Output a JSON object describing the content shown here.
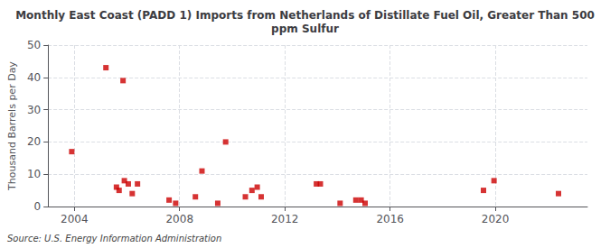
{
  "chart_data": {
    "type": "scatter",
    "title": "Monthly East Coast (PADD 1) Imports from Netherlands of Distillate Fuel Oil, Greater Than 500\nppm Sulfur",
    "ylabel": "Thousand Barrels per Day",
    "annotation": "Source: U.S. Energy Information Administration",
    "color": "#cc0000",
    "marker": "square",
    "grid": true,
    "xlim": [
      2003.0,
      2023.5
    ],
    "ylim": [
      0,
      50
    ],
    "xticks": [
      2004,
      2008,
      2012,
      2016,
      2020
    ],
    "yticks": [
      0,
      10,
      20,
      30,
      40,
      50
    ],
    "x": [
      2003.9,
      2005.2,
      2005.85,
      2005.6,
      2005.7,
      2005.9,
      2006.05,
      2006.2,
      2006.4,
      2007.6,
      2007.85,
      2008.85,
      2008.6,
      2009.75,
      2009.45,
      2010.5,
      2010.75,
      2010.95,
      2011.1,
      2013.2,
      2013.35,
      2014.1,
      2014.7,
      2014.9,
      2015.05,
      2019.55,
      2019.95,
      2022.4
    ],
    "values": [
      17,
      43,
      39,
      6,
      5,
      8,
      7,
      4,
      7,
      2,
      1,
      11,
      3,
      20,
      1,
      3,
      5,
      6,
      3,
      7,
      7,
      1,
      2,
      2,
      1,
      5,
      8,
      4
    ]
  }
}
